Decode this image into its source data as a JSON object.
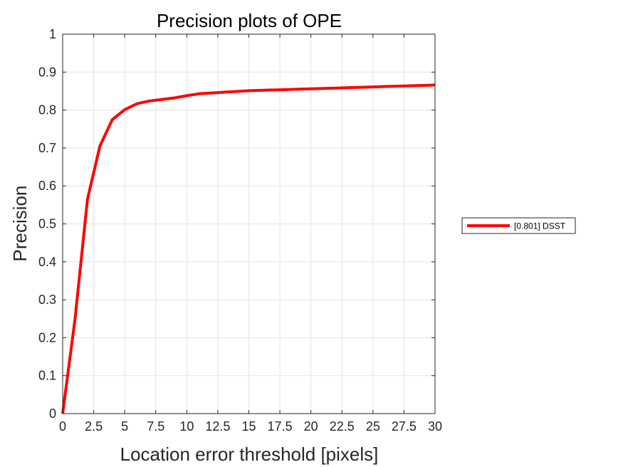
{
  "chart_data": {
    "type": "line",
    "title": "Precision plots of OPE",
    "xlabel": "Location error threshold [pixels]",
    "ylabel": "Precision",
    "xlim": [
      0,
      30
    ],
    "ylim": [
      0,
      1
    ],
    "grid": true,
    "x_ticks": [
      "0",
      "2.5",
      "5",
      "7.5",
      "10",
      "12.5",
      "15",
      "17.5",
      "20",
      "22.5",
      "25",
      "27.5",
      "30"
    ],
    "x_tick_values": [
      0,
      2.5,
      5,
      7.5,
      10,
      12.5,
      15,
      17.5,
      20,
      22.5,
      25,
      27.5,
      30
    ],
    "y_ticks": [
      "0",
      "0.1",
      "0.2",
      "0.3",
      "0.4",
      "0.5",
      "0.6",
      "0.7",
      "0.8",
      "0.9",
      "1"
    ],
    "y_tick_values": [
      0,
      0.1,
      0.2,
      0.3,
      0.4,
      0.5,
      0.6,
      0.7,
      0.8,
      0.9,
      1.0
    ],
    "legend_position": "outside-right",
    "series": [
      {
        "name": "[0.801] DSST",
        "color": "#ff0000",
        "x": [
          0,
          1,
          2,
          3,
          4,
          5,
          6,
          7,
          8,
          9,
          10,
          11,
          12,
          13,
          14,
          15,
          16,
          17,
          18,
          19,
          20,
          21,
          22,
          23,
          24,
          25,
          26,
          27,
          28,
          29,
          30
        ],
        "y": [
          0.0,
          0.25,
          0.565,
          0.705,
          0.775,
          0.801,
          0.817,
          0.824,
          0.828,
          0.832,
          0.838,
          0.843,
          0.845,
          0.847,
          0.849,
          0.851,
          0.852,
          0.853,
          0.854,
          0.855,
          0.856,
          0.857,
          0.858,
          0.859,
          0.86,
          0.861,
          0.862,
          0.863,
          0.864,
          0.865,
          0.866
        ]
      }
    ]
  }
}
